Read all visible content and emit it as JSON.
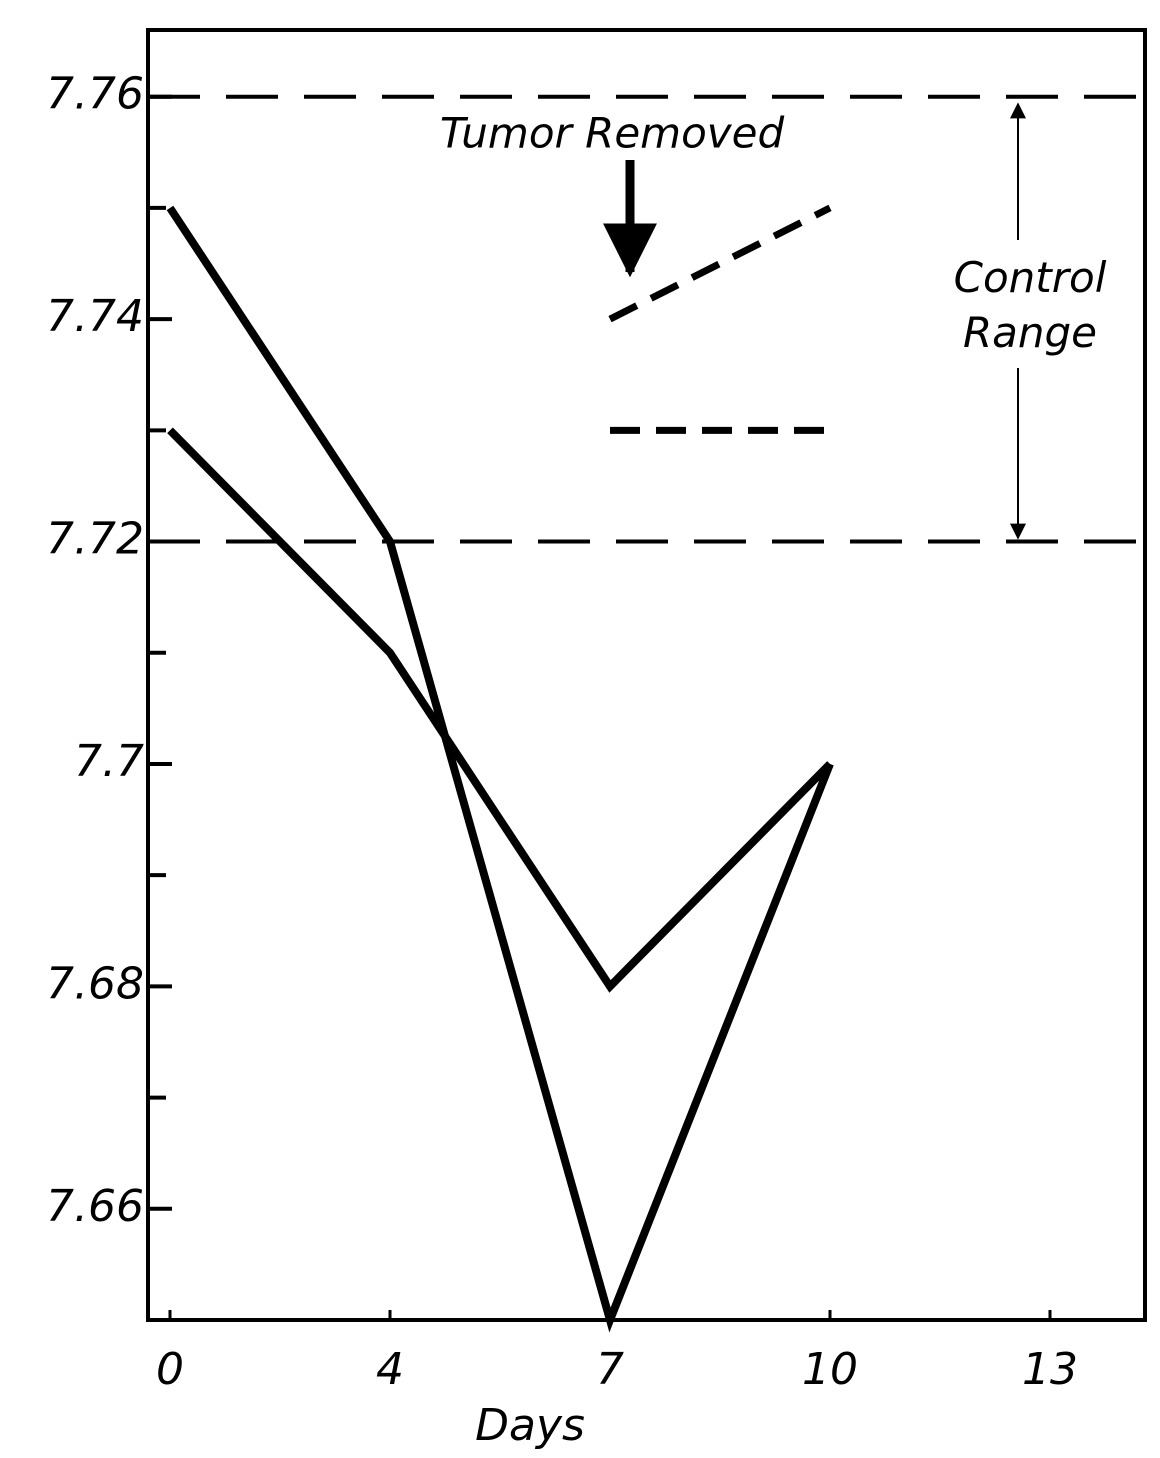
{
  "chart_data": {
    "type": "line",
    "xlabel": "Days",
    "categories": [
      "0",
      "4",
      "7",
      "10",
      "13"
    ],
    "series": [
      {
        "color": "#000000",
        "dashed": false,
        "values": [
          7.75,
          7.72,
          7.65,
          7.7,
          null
        ]
      },
      {
        "color": "#000000",
        "dashed": false,
        "values": [
          7.73,
          7.71,
          7.68,
          7.7,
          null
        ]
      },
      {
        "color": "#000000",
        "dashed": true,
        "values": [
          null,
          null,
          7.74,
          7.75,
          null
        ]
      },
      {
        "color": "#000000",
        "dashed": true,
        "values": [
          null,
          null,
          7.73,
          7.73,
          null
        ]
      }
    ],
    "ylim": [
      7.65,
      7.766
    ],
    "yticks": [
      7.66,
      7.68,
      7.7,
      7.72,
      7.74,
      7.76
    ],
    "yminorticks": [
      7.67,
      7.69,
      7.71,
      7.73,
      7.75
    ],
    "reference_lines": [
      7.76,
      7.72
    ],
    "annotations": [
      "Tumor Removed",
      "Control Range"
    ]
  }
}
